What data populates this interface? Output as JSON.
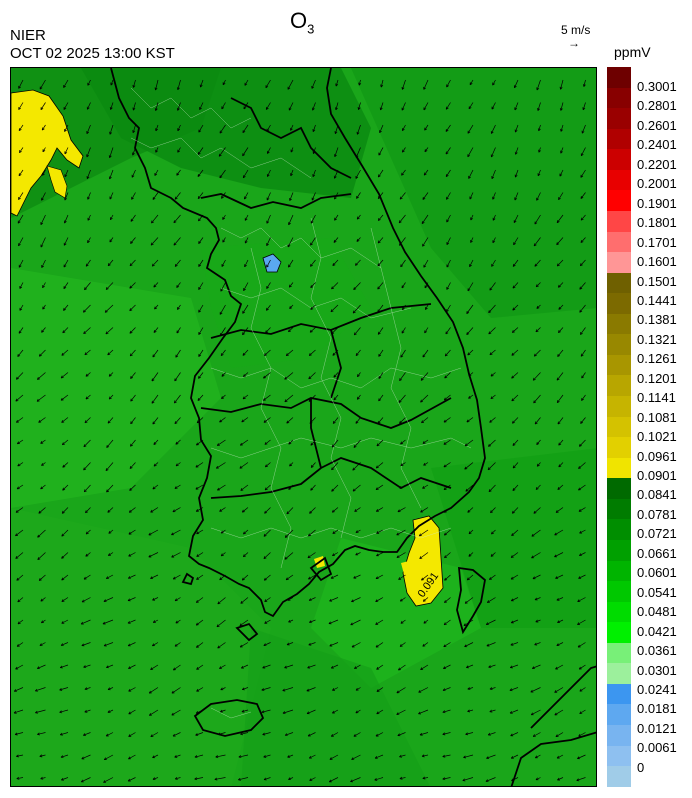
{
  "header": {
    "title_main": "O",
    "title_sub": "3",
    "organization": "NIER",
    "timestamp": "OCT 02 2025 13:00 KST",
    "wind_reference": "5 m/s",
    "unit": "ppmV"
  },
  "legend": {
    "labels": [
      "0.3001",
      "0.2801",
      "0.2601",
      "0.2401",
      "0.2201",
      "0.2001",
      "0.1901",
      "0.1801",
      "0.1701",
      "0.1601",
      "0.1501",
      "0.1441",
      "0.1381",
      "0.1321",
      "0.1261",
      "0.1201",
      "0.1141",
      "0.1081",
      "0.1021",
      "0.0961",
      "0.0901",
      "0.0841",
      "0.0781",
      "0.0721",
      "0.0661",
      "0.0601",
      "0.0541",
      "0.0481",
      "0.0421",
      "0.0361",
      "0.0301",
      "0.0241",
      "0.0181",
      "0.0121",
      "0.0061",
      "0"
    ],
    "colors": [
      "#6e0000",
      "#7e0000",
      "#900000",
      "#a40000",
      "#c00000",
      "#dc0000",
      "#ff0000",
      "#ff3c3c",
      "#ff6464",
      "#ff8c8c",
      "#ff9c9c",
      "#7a6800",
      "#7e6c00",
      "#8a7800",
      "#9a8800",
      "#aa9800",
      "#b8a800",
      "#c8b800",
      "#d4c400",
      "#e2d200",
      "#f4e800",
      "#006400",
      "#007800",
      "#008c00",
      "#00a000",
      "#00b400",
      "#00c800",
      "#00dc00",
      "#00f000",
      "#78f078",
      "#a0f0a0",
      "#3c96f0",
      "#5aa8f0",
      "#78b4f0",
      "#8cbef0",
      "#a0c8ec"
    ],
    "swatch_colors": [
      "#6e0000",
      "#880000",
      "#9a0000",
      "#b00000",
      "#cc0000",
      "#e80000",
      "#ff0000",
      "#ff4646",
      "#ff6e6e",
      "#ff9696",
      "#6f6000",
      "#7c6a00",
      "#8a7a00",
      "#988800",
      "#a89600",
      "#b8a600",
      "#c6b400",
      "#d4c200",
      "#e2d000",
      "#f0e400",
      "#006a00",
      "#007c00",
      "#008e00",
      "#00a000",
      "#00b400",
      "#00c800",
      "#00dc00",
      "#00f000",
      "#78f078",
      "#9cf09c",
      "#3c96f0",
      "#5ea8f0",
      "#78b4f0",
      "#8ec0f0",
      "#a0cce8"
    ],
    "colors_note": "color scale ordered from top (highest) to bottom (lowest)"
  },
  "map": {
    "background_color": "#1aa61a",
    "contour_label": "0.091"
  }
}
